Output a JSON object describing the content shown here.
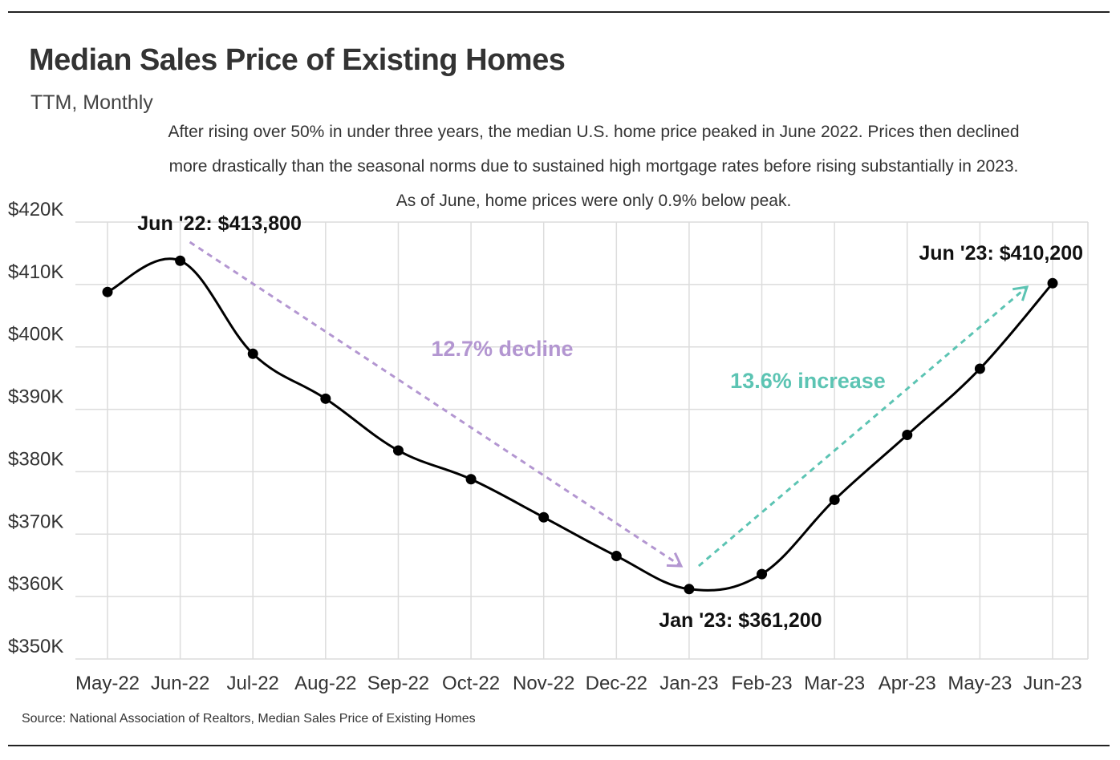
{
  "title": "Median Sales Price of Existing Homes",
  "subtitle": "TTM, Monthly",
  "description": "After rising over 50% in under three years, the median U.S. home price peaked in June 2022. Prices then declined more drastically than the seasonal norms due to sustained high mortgage rates before rising substantially in 2023. As of June, home prices were only 0.9% below peak.",
  "source": "Source:  National Association of Realtors, Median Sales Price of Existing Homes",
  "chart_data": {
    "type": "line",
    "title": "Median Sales Price of Existing Homes",
    "subtitle": "TTM, Monthly",
    "xlabel": "",
    "ylabel": "",
    "categories": [
      "May-22",
      "Jun-22",
      "Jul-22",
      "Aug-22",
      "Sep-22",
      "Oct-22",
      "Nov-22",
      "Dec-22",
      "Jan-23",
      "Feb-23",
      "Mar-23",
      "Apr-23",
      "May-23",
      "Jun-23"
    ],
    "series": [
      {
        "name": "Median Sales Price",
        "values": [
          408800,
          413800,
          398900,
          391700,
          383400,
          378800,
          372700,
          366500,
          361200,
          363600,
          375500,
          385900,
          396500,
          410200
        ]
      }
    ],
    "ylim": [
      350000,
      420000
    ],
    "yticks": [
      420000,
      410000,
      400000,
      390000,
      380000,
      370000,
      360000,
      350000
    ],
    "ytick_labels": [
      "$420K",
      "$410K",
      "$400K",
      "$390K",
      "$380K",
      "$370K",
      "$360K",
      "$350K"
    ],
    "grid": true,
    "line_color": "#000000",
    "annotations": {
      "points": [
        {
          "index": 1,
          "label": "Jun '22: $413,800"
        },
        {
          "index": 8,
          "label": "Jan '23: $361,200"
        },
        {
          "index": 13,
          "label": "Jun '23: $410,200"
        }
      ],
      "trends": [
        {
          "from": 1,
          "to": 8,
          "label": "12.7% decline",
          "color": "#b396d1"
        },
        {
          "from": 8,
          "to": 13,
          "label": "13.6% increase",
          "color": "#5cc4b3"
        }
      ]
    }
  }
}
